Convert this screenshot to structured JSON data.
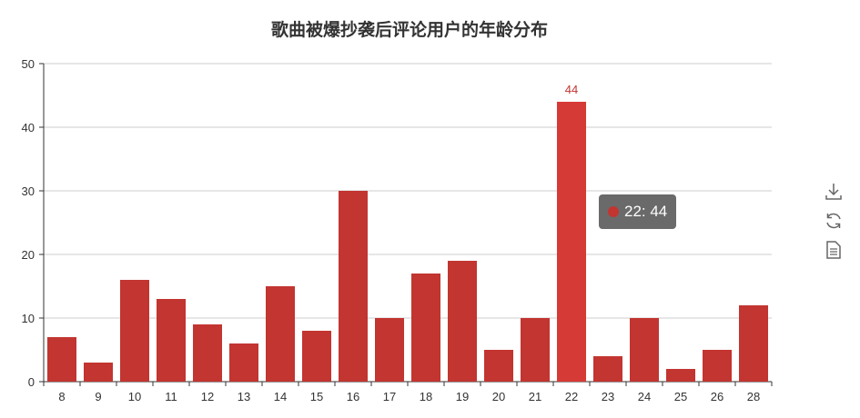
{
  "colors": {
    "bar": "#c23531",
    "bar_highlight": "#d63a36",
    "label": "#c23531",
    "axis": "#333333",
    "grid": "#cccccc",
    "icon": "#666666"
  },
  "toolbox": {
    "icons": [
      "download-icon",
      "refresh-icon",
      "data-view-icon"
    ]
  },
  "tooltip": {
    "category": "22",
    "value": 44,
    "text": "22: 44"
  },
  "chart_data": {
    "type": "bar",
    "title": "歌曲被爆抄袭后评论用户的年龄分布",
    "xlabel": "",
    "ylabel": "",
    "categories": [
      "8",
      "9",
      "10",
      "11",
      "12",
      "13",
      "14",
      "15",
      "16",
      "17",
      "18",
      "19",
      "20",
      "21",
      "22",
      "23",
      "24",
      "25",
      "26",
      "28"
    ],
    "values": [
      7,
      3,
      16,
      13,
      9,
      6,
      15,
      8,
      30,
      10,
      17,
      19,
      5,
      10,
      44,
      4,
      10,
      2,
      5,
      12
    ],
    "ylim": [
      0,
      50
    ],
    "yticks": [
      0,
      10,
      20,
      30,
      40,
      50
    ],
    "grid": true,
    "highlighted_category": "22",
    "data_labels": [
      {
        "category": "22",
        "text": "44"
      }
    ]
  }
}
